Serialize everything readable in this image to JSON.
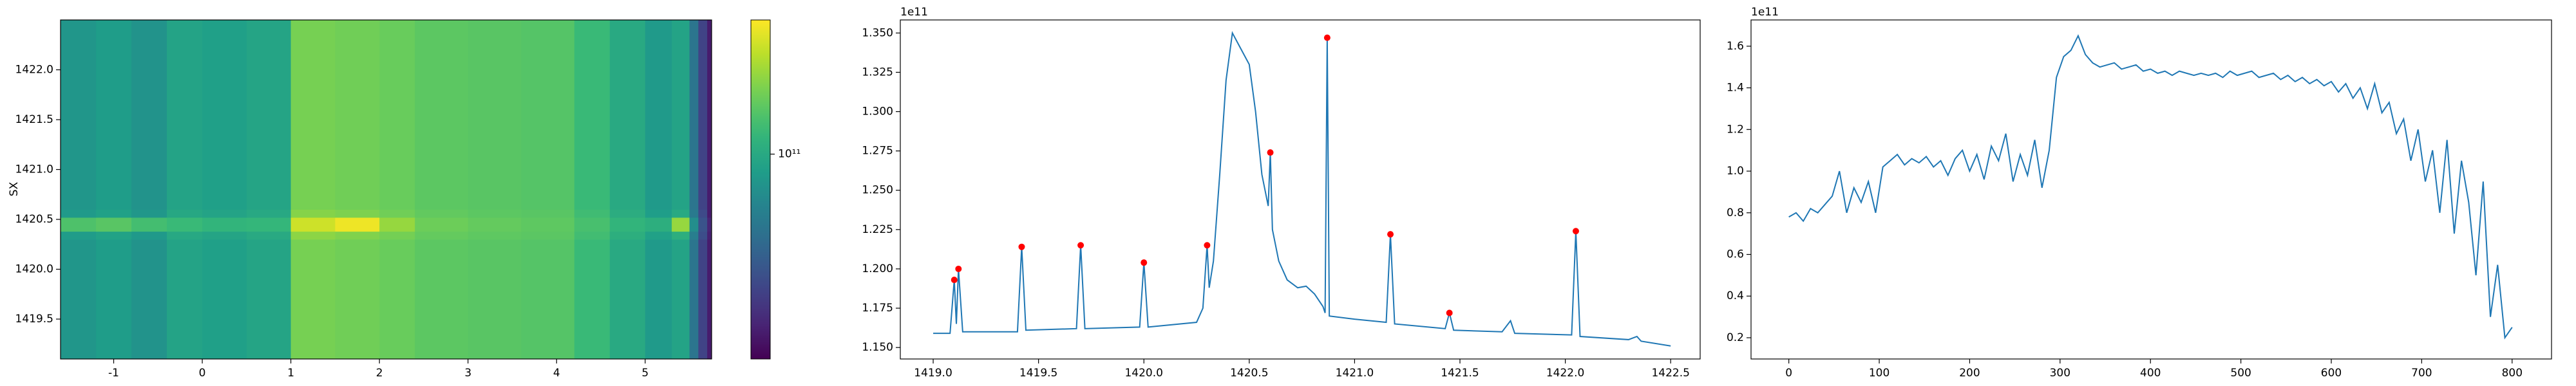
{
  "chart_data": [
    {
      "type": "heatmap",
      "ylabel": "SX",
      "colormap": "viridis",
      "xbins": [
        -1.6,
        -1.2,
        -0.8,
        -0.4,
        0,
        0.5,
        1.0,
        1.5,
        2.0,
        2.4,
        3.0,
        3.6,
        4.2,
        4.6,
        5.0,
        5.3,
        5.5,
        5.6,
        5.7,
        5.75
      ],
      "ybins": [
        1419.1,
        1420.3,
        1420.38,
        1420.52,
        1420.6,
        1422.5
      ],
      "values": [
        [
          85000000000.0,
          90000000000.0,
          83000000000.0,
          95000000000.0,
          92000000000.0,
          96000000000.0,
          145000000000.0,
          142000000000.0,
          138000000000.0,
          132000000000.0,
          130000000000.0,
          128000000000.0,
          115000000000.0,
          100000000000.0,
          88000000000.0,
          95000000000.0,
          65000000000.0,
          45000000000.0,
          35000000000.0
        ],
        [
          89000000000.0,
          94000000000.0,
          87000000000.0,
          99000000000.0,
          96000000000.0,
          100000000000.0,
          155000000000.0,
          150000000000.0,
          144000000000.0,
          136000000000.0,
          133000000000.0,
          131000000000.0,
          119000000000.0,
          105000000000.0,
          93000000000.0,
          105000000000.0,
          70000000000.0,
          48000000000.0,
          36000000000.0
        ],
        [
          125000000000.0,
          130000000000.0,
          120000000000.0,
          115000000000.0,
          110000000000.0,
          112000000000.0,
          190000000000.0,
          210000000000.0,
          160000000000.0,
          140000000000.0,
          136000000000.0,
          133000000000.0,
          122000000000.0,
          110000000000.0,
          105000000000.0,
          160000000000.0,
          80000000000.0,
          50000000000.0,
          37000000000.0
        ],
        [
          88000000000.0,
          93000000000.0,
          86000000000.0,
          98000000000.0,
          95000000000.0,
          99000000000.0,
          152000000000.0,
          148000000000.0,
          142000000000.0,
          135000000000.0,
          132000000000.0,
          130000000000.0,
          118000000000.0,
          103000000000.0,
          91000000000.0,
          100000000000.0,
          68000000000.0,
          47000000000.0,
          35000000000.0
        ],
        [
          85000000000.0,
          90000000000.0,
          83000000000.0,
          95000000000.0,
          92000000000.0,
          96000000000.0,
          145000000000.0,
          142000000000.0,
          138000000000.0,
          132000000000.0,
          130000000000.0,
          128000000000.0,
          115000000000.0,
          100000000000.0,
          88000000000.0,
          95000000000.0,
          65000000000.0,
          45000000000.0,
          35000000000.0
        ]
      ],
      "xlim": [
        -1.6,
        5.75
      ],
      "ylim": [
        1419.1,
        1422.5
      ],
      "xticks": [
        -1,
        0,
        1,
        2,
        3,
        4,
        5
      ],
      "yticks": [
        1419.5,
        {
          "value": 1420.0,
          "label": "1420.0"
        },
        1420.5,
        {
          "value": 1421.0,
          "label": "1421.0"
        },
        1421.5,
        {
          "value": 1422.0,
          "label": "1422.0"
        }
      ],
      "colorbar": {
        "lim": [
          30000000000.0,
          220000000000.0
        ],
        "log": true,
        "ticks": [
          {
            "value": 100000000000.0,
            "label": "10¹¹"
          }
        ]
      }
    },
    {
      "type": "line",
      "color": "#1f77b4",
      "y_offset_text": "1e11",
      "x": [
        1419.0,
        1419.08,
        1419.1,
        1419.11,
        1419.12,
        1419.14,
        1419.4,
        1419.42,
        1419.44,
        1419.68,
        1419.7,
        1419.72,
        1419.98,
        1420.0,
        1420.02,
        1420.25,
        1420.28,
        1420.3,
        1420.31,
        1420.33,
        1420.36,
        1420.39,
        1420.42,
        1420.46,
        1420.5,
        1420.53,
        1420.56,
        1420.59,
        1420.6,
        1420.61,
        1420.64,
        1420.68,
        1420.73,
        1420.77,
        1420.81,
        1420.85,
        1420.86,
        1420.87,
        1420.88,
        1421.0,
        1421.15,
        1421.17,
        1421.19,
        1421.43,
        1421.45,
        1421.47,
        1421.7,
        1421.74,
        1421.76,
        1422.03,
        1422.05,
        1422.07,
        1422.3,
        1422.34,
        1422.36,
        1422.5
      ],
      "values": [
        115900000000.0,
        115900000000.0,
        119300000000.0,
        116500000000.0,
        120000000000.0,
        116000000000.0,
        116000000000.0,
        121400000000.0,
        116100000000.0,
        116200000000.0,
        121500000000.0,
        116200000000.0,
        116300000000.0,
        120400000000.0,
        116300000000.0,
        116600000000.0,
        117500000000.0,
        121500000000.0,
        118800000000.0,
        120500000000.0,
        126000000000.0,
        132000000000.0,
        135000000000.0,
        134000000000.0,
        133000000000.0,
        130000000000.0,
        126000000000.0,
        124000000000.0,
        127400000000.0,
        122500000000.0,
        120500000000.0,
        119300000000.0,
        118800000000.0,
        118900000000.0,
        118400000000.0,
        117600000000.0,
        117200000000.0,
        134700000000.0,
        117000000000.0,
        116800000000.0,
        116600000000.0,
        122200000000.0,
        116500000000.0,
        116200000000.0,
        117200000000.0,
        116100000000.0,
        116000000000.0,
        116700000000.0,
        115900000000.0,
        115800000000.0,
        122400000000.0,
        115700000000.0,
        115500000000.0,
        115700000000.0,
        115400000000.0,
        115100000000.0
      ],
      "points": {
        "color": "red",
        "x": [
          1419.1,
          1419.12,
          1419.42,
          1419.7,
          1420.0,
          1420.3,
          1420.6,
          1420.87,
          1421.17,
          1421.45,
          1422.05
        ],
        "values": [
          119300000000.0,
          120000000000.0,
          121400000000.0,
          121500000000.0,
          120400000000.0,
          121500000000.0,
          127400000000.0,
          134700000000.0,
          122200000000.0,
          117200000000.0,
          122400000000.0
        ]
      },
      "xlim": [
        1418.844,
        1422.64
      ],
      "ylim": [
        114270000000.0,
        135830000000.0
      ],
      "xticks": [
        {
          "value": 1419.0,
          "label": "1419.0"
        },
        1419.5,
        {
          "value": 1420.0,
          "label": "1420.0"
        },
        1420.5,
        {
          "value": 1421.0,
          "label": "1421.0"
        },
        1421.5,
        {
          "value": 1422.0,
          "label": "1422.0"
        },
        1422.5
      ],
      "yticks": [
        {
          "value": 115000000000.0,
          "label": "1.150"
        },
        {
          "value": 117500000000.0,
          "label": "1.175"
        },
        {
          "value": 120000000000.0,
          "label": "1.200"
        },
        {
          "value": 122500000000.0,
          "label": "1.225"
        },
        {
          "value": 125000000000.0,
          "label": "1.250"
        },
        {
          "value": 127500000000.0,
          "label": "1.275"
        },
        {
          "value": 130000000000.0,
          "label": "1.300"
        },
        {
          "value": 132500000000.0,
          "label": "1.325"
        },
        {
          "value": 135000000000.0,
          "label": "1.350"
        }
      ]
    },
    {
      "type": "line",
      "color": "#1f77b4",
      "y_offset_text": "1e11",
      "x": [
        0,
        8,
        16,
        24,
        32,
        40,
        48,
        56,
        64,
        72,
        80,
        88,
        96,
        104,
        112,
        120,
        128,
        136,
        144,
        152,
        160,
        168,
        176,
        184,
        192,
        200,
        208,
        216,
        224,
        232,
        240,
        248,
        256,
        264,
        272,
        280,
        288,
        296,
        304,
        312,
        320,
        328,
        336,
        344,
        352,
        360,
        368,
        376,
        384,
        392,
        400,
        408,
        416,
        424,
        432,
        440,
        448,
        456,
        464,
        472,
        480,
        488,
        496,
        504,
        512,
        520,
        528,
        536,
        544,
        552,
        560,
        568,
        576,
        584,
        592,
        600,
        608,
        616,
        624,
        632,
        640,
        648,
        656,
        664,
        672,
        680,
        688,
        696,
        704,
        712,
        720,
        728,
        736,
        744,
        752,
        760,
        768,
        776,
        784,
        792,
        800
      ],
      "values": [
        78000000000.0,
        80000000000.0,
        76000000000.0,
        82000000000.0,
        80000000000.0,
        84000000000.0,
        88000000000.0,
        100000000000.0,
        80000000000.0,
        92000000000.0,
        85000000000.0,
        95000000000.0,
        80000000000.0,
        102000000000.0,
        105000000000.0,
        108000000000.0,
        103000000000.0,
        106000000000.0,
        104000000000.0,
        107000000000.0,
        102000000000.0,
        105000000000.0,
        98000000000.0,
        106000000000.0,
        110000000000.0,
        100000000000.0,
        108000000000.0,
        96000000000.0,
        112000000000.0,
        105000000000.0,
        118000000000.0,
        95000000000.0,
        108000000000.0,
        98000000000.0,
        115000000000.0,
        92000000000.0,
        110000000000.0,
        145000000000.0,
        155000000000.0,
        158000000000.0,
        165000000000.0,
        156000000000.0,
        152000000000.0,
        150000000000.0,
        151000000000.0,
        152000000000.0,
        149000000000.0,
        150000000000.0,
        151000000000.0,
        148000000000.0,
        149000000000.0,
        147000000000.0,
        148000000000.0,
        146000000000.0,
        148000000000.0,
        147000000000.0,
        146000000000.0,
        147000000000.0,
        146000000000.0,
        147000000000.0,
        145000000000.0,
        148000000000.0,
        146000000000.0,
        147000000000.0,
        148000000000.0,
        145000000000.0,
        146000000000.0,
        147000000000.0,
        144000000000.0,
        146000000000.0,
        143000000000.0,
        145000000000.0,
        142000000000.0,
        144000000000.0,
        141000000000.0,
        143000000000.0,
        138000000000.0,
        142000000000.0,
        135000000000.0,
        140000000000.0,
        130000000000.0,
        142000000000.0,
        128000000000.0,
        133000000000.0,
        118000000000.0,
        125000000000.0,
        105000000000.0,
        120000000000.0,
        95000000000.0,
        110000000000.0,
        80000000000.0,
        115000000000.0,
        70000000000.0,
        105000000000.0,
        85000000000.0,
        50000000000.0,
        95000000000.0,
        30000000000.0,
        55000000000.0,
        20000000000.0,
        25000000000.0
      ],
      "xlim": [
        -41.8,
        843.6
      ],
      "ylim": [
        9800000000.0,
        172600000000.0
      ],
      "xticks": [
        0,
        100,
        200,
        300,
        400,
        500,
        600,
        700,
        800
      ],
      "yticks": [
        {
          "value": 20000000000.0,
          "label": "0.2"
        },
        {
          "value": 40000000000.0,
          "label": "0.4"
        },
        {
          "value": 60000000000.0,
          "label": "0.6"
        },
        {
          "value": 80000000000.0,
          "label": "0.8"
        },
        {
          "value": 100000000000.0,
          "label": "1.0"
        },
        {
          "value": 120000000000.0,
          "label": "1.2"
        },
        {
          "value": 140000000000.0,
          "label": "1.4"
        },
        {
          "value": 160000000000.0,
          "label": "1.6"
        }
      ]
    }
  ]
}
